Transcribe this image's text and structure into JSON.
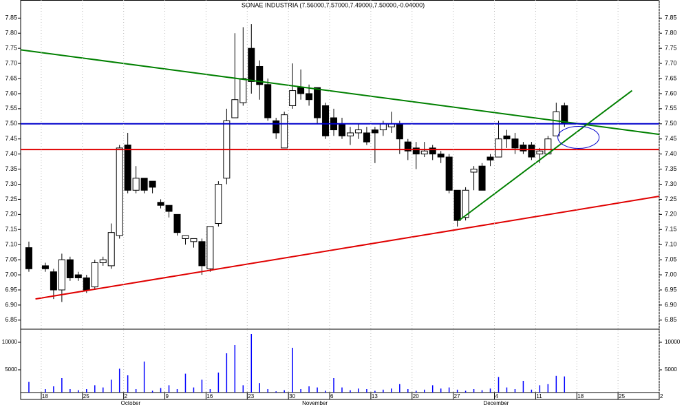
{
  "chart_data": [
    {
      "type": "candlestick",
      "title": "SONAE INDUSTRIA (7.56000,7.57000,7.49000,7.50000,-0.04000)",
      "x": [
        -1.5,
        0.5,
        1.5,
        2.5,
        3.5,
        4.5,
        5.5,
        6.5,
        7.5,
        8.5,
        9.5,
        10.5,
        11.5,
        12.5,
        13.5,
        14.5,
        15.5,
        16.5,
        17.5,
        18.5,
        19.5,
        20.5,
        21.5,
        22.5,
        23.5,
        24.5,
        25.5,
        26.5,
        27.5,
        28.5,
        29.5,
        30.5,
        31.5,
        32.5,
        33.5,
        34.5,
        35.5,
        36.5,
        37.5,
        38.5,
        39.5,
        40.5,
        41.5,
        42.5,
        43.5,
        44.5,
        45.5,
        46.5,
        47.5,
        48.5,
        49.5,
        50.5,
        51.5,
        52.5,
        53.5,
        54.5,
        55.5,
        56.5,
        57.5,
        58.5,
        59.5,
        60.5,
        61.5,
        62.5,
        63.5
      ],
      "open": [
        7.09,
        7.03,
        7.01,
        6.95,
        7.05,
        7.0,
        6.99,
        6.96,
        7.04,
        7.03,
        7.13,
        7.43,
        7.28,
        7.32,
        7.31,
        7.24,
        7.23,
        7.2,
        7.12,
        7.11,
        7.11,
        7.02,
        7.17,
        7.32,
        7.52,
        7.57,
        7.75,
        7.69,
        7.63,
        7.51,
        7.42,
        7.56,
        7.62,
        7.6,
        7.62,
        7.56,
        7.52,
        7.5,
        7.46,
        7.47,
        7.47,
        7.48,
        7.48,
        7.49,
        7.5,
        7.44,
        7.42,
        7.4,
        7.42,
        7.4,
        7.39,
        7.28,
        7.19,
        7.34,
        7.36,
        7.39,
        7.39,
        7.46,
        7.45,
        7.43,
        7.43,
        7.4,
        7.4,
        7.46,
        7.56
      ],
      "high": [
        7.11,
        7.04,
        7.02,
        7.07,
        7.06,
        7.01,
        7.0,
        7.05,
        7.06,
        7.17,
        7.43,
        7.47,
        7.36,
        7.32,
        7.31,
        7.25,
        7.23,
        7.2,
        7.13,
        7.12,
        7.12,
        7.16,
        7.31,
        7.55,
        7.8,
        7.82,
        7.83,
        7.71,
        7.65,
        7.52,
        7.54,
        7.7,
        7.68,
        7.63,
        7.62,
        7.57,
        7.55,
        7.52,
        7.49,
        7.5,
        7.49,
        7.49,
        7.51,
        7.54,
        7.51,
        7.45,
        7.44,
        7.44,
        7.43,
        7.41,
        7.4,
        7.28,
        7.29,
        7.36,
        7.37,
        7.4,
        7.51,
        7.48,
        7.47,
        7.44,
        7.44,
        7.42,
        7.46,
        7.57,
        7.57
      ],
      "low": [
        7.01,
        7.01,
        6.92,
        6.91,
        6.98,
        6.98,
        6.94,
        6.95,
        7.03,
        7.02,
        7.12,
        7.27,
        7.27,
        7.27,
        7.27,
        7.22,
        7.19,
        7.13,
        7.1,
        7.09,
        7.0,
        7.01,
        7.16,
        7.3,
        7.52,
        7.56,
        7.6,
        7.58,
        7.51,
        7.45,
        7.42,
        7.55,
        7.58,
        7.56,
        7.5,
        7.45,
        7.46,
        7.45,
        7.43,
        7.45,
        7.43,
        7.37,
        7.46,
        7.47,
        7.4,
        7.38,
        7.35,
        7.39,
        7.38,
        7.37,
        7.27,
        7.16,
        7.18,
        7.28,
        7.28,
        7.36,
        7.39,
        7.42,
        7.4,
        7.4,
        7.38,
        7.37,
        7.4,
        7.46,
        7.49
      ],
      "close": [
        7.02,
        7.02,
        6.95,
        7.05,
        6.99,
        6.99,
        6.95,
        7.04,
        7.05,
        7.14,
        7.42,
        7.28,
        7.32,
        7.28,
        7.29,
        7.23,
        7.21,
        7.14,
        7.13,
        7.12,
        7.03,
        7.16,
        7.3,
        7.51,
        7.58,
        7.65,
        7.64,
        7.63,
        7.52,
        7.47,
        7.53,
        7.61,
        7.6,
        7.58,
        7.52,
        7.46,
        7.48,
        7.46,
        7.47,
        7.48,
        7.44,
        7.47,
        7.5,
        7.5,
        7.45,
        7.41,
        7.4,
        7.41,
        7.4,
        7.39,
        7.28,
        7.18,
        7.28,
        7.35,
        7.28,
        7.38,
        7.45,
        7.45,
        7.42,
        7.41,
        7.39,
        7.41,
        7.45,
        7.54,
        7.5
      ],
      "rise_color": "#ffffff",
      "fall_color": "#000000",
      "xlim": [
        -2.5,
        75
      ],
      "ylim": [
        6.82,
        7.91
      ],
      "yticks": [
        6.85,
        {
          "value": 6.9,
          "label": "6.90"
        },
        6.95,
        {
          "value": 7.0,
          "label": "7.00"
        },
        7.05,
        {
          "value": 7.1,
          "label": "7.10"
        },
        7.15,
        {
          "value": 7.2,
          "label": "7.20"
        },
        7.25,
        {
          "value": 7.3,
          "label": "7.30"
        },
        7.35,
        {
          "value": 7.4,
          "label": "7.40"
        },
        7.45,
        {
          "value": 7.5,
          "label": "7.50"
        },
        7.55,
        {
          "value": 7.6,
          "label": "7.60"
        },
        7.65,
        {
          "value": 7.7,
          "label": "7.70"
        },
        7.75,
        {
          "value": 7.8,
          "label": "7.80"
        },
        7.85
      ],
      "trendlines": [
        {
          "color": "#008000",
          "x": [
            -2.5,
            75
          ],
          "y": [
            7.745,
            7.465
          ]
        },
        {
          "color": "#0000cc",
          "x": [
            -2.5,
            75
          ],
          "y": [
            7.5,
            7.5
          ]
        },
        {
          "color": "#e00000",
          "x": [
            -2.5,
            75
          ],
          "y": [
            7.415,
            7.415
          ]
        },
        {
          "color": "#e00000",
          "x": [
            -0.7,
            75
          ],
          "y": [
            6.92,
            7.26
          ]
        },
        {
          "color": "#008000",
          "x": [
            50.7,
            71.7
          ],
          "y": [
            7.18,
            7.61
          ]
        }
      ],
      "ellipse": {
        "color": "#0000cc",
        "x": 65.2,
        "y": 7.455
      }
    },
    {
      "type": "bar",
      "x": [
        -1.5,
        0.5,
        1.5,
        2.5,
        3.5,
        4.5,
        5.5,
        6.5,
        7.5,
        8.5,
        9.5,
        10.5,
        11.5,
        12.5,
        13.5,
        14.5,
        15.5,
        16.5,
        17.5,
        18.5,
        19.5,
        20.5,
        21.5,
        22.5,
        23.5,
        24.5,
        25.5,
        26.5,
        27.5,
        28.5,
        29.5,
        30.5,
        31.5,
        32.5,
        33.5,
        34.5,
        35.5,
        36.5,
        37.5,
        38.5,
        39.5,
        40.5,
        41.5,
        42.5,
        43.5,
        44.5,
        45.5,
        46.5,
        47.5,
        48.5,
        49.5,
        50.5,
        51.5,
        52.5,
        53.5,
        54.5,
        55.5,
        56.5,
        57.5,
        58.5,
        59.5,
        60.5,
        61.5,
        62.5,
        63.5
      ],
      "values": [
        2800,
        1500,
        2000,
        3500,
        1500,
        1300,
        1500,
        2200,
        1800,
        3200,
        5200,
        4000,
        1500,
        6500,
        1200,
        1700,
        2200,
        1500,
        4300,
        1800,
        3200,
        1500,
        4500,
        8000,
        9500,
        2200,
        11500,
        2600,
        1500,
        1100,
        1300,
        9000,
        1500,
        2000,
        1800,
        1200,
        3500,
        1800,
        1300,
        1600,
        1500,
        1200,
        1400,
        1600,
        2400,
        1500,
        1200,
        1400,
        2200,
        1600,
        1800,
        1400,
        1200,
        1500,
        1300,
        1600,
        3700,
        1800,
        1500,
        3000,
        1400,
        2200,
        2400,
        3900,
        3800
      ],
      "color": "#0000ff",
      "xlim": [
        -2.5,
        75
      ],
      "ylim": [
        875,
        12375
      ],
      "yticks": [
        5000,
        10000
      ],
      "xticks": [
        {
          "value": 0,
          "label": "18"
        },
        {
          "value": 5,
          "label": "25"
        },
        {
          "value": 10,
          "label": "2"
        },
        {
          "value": 15,
          "label": "9"
        },
        {
          "value": 20,
          "label": "16"
        },
        {
          "value": 25,
          "label": "23"
        },
        {
          "value": 30,
          "label": "30"
        },
        {
          "value": 35,
          "label": "6"
        },
        {
          "value": 40,
          "label": "13"
        },
        {
          "value": 45,
          "label": "20"
        },
        {
          "value": 50,
          "label": "27"
        },
        {
          "value": 55,
          "label": "4"
        },
        {
          "value": 60,
          "label": "11"
        },
        {
          "value": 65,
          "label": "18"
        },
        {
          "value": 70,
          "label": "25"
        },
        {
          "value": 75,
          "label": "2"
        }
      ],
      "months": [
        {
          "label": "October",
          "x": 10
        },
        {
          "label": "November",
          "x": 32
        },
        {
          "label": "December",
          "x": 54
        }
      ],
      "grid": true
    }
  ]
}
